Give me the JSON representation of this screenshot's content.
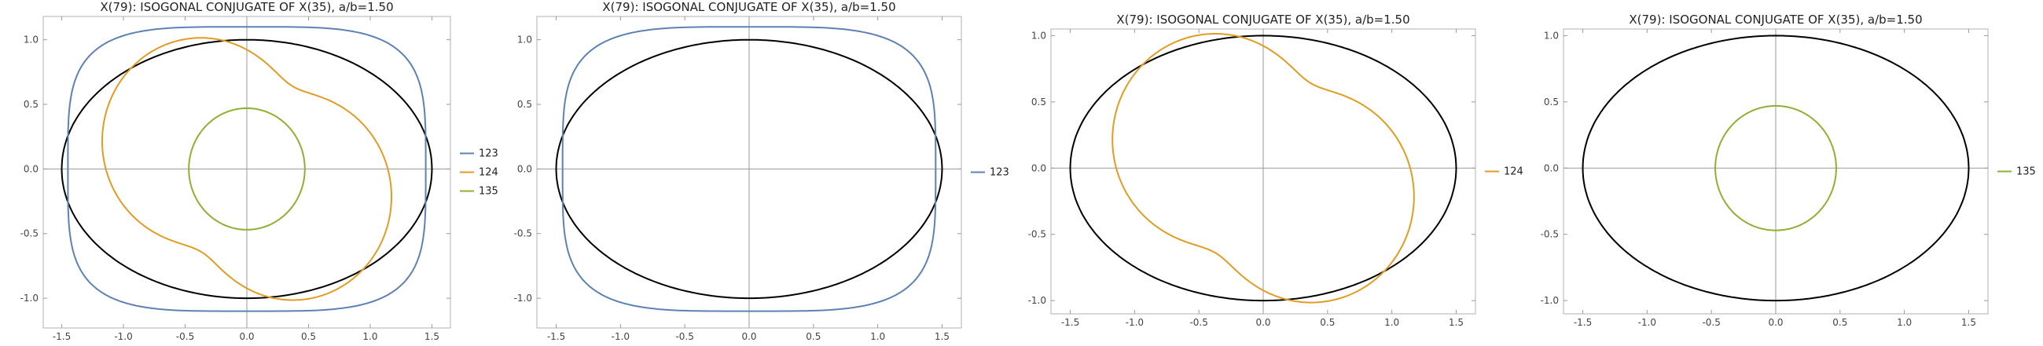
{
  "colors": {
    "s123": "#5e81b5",
    "s124": "#e19c24",
    "s135": "#8fb032",
    "ellipse": "#000000",
    "frame": "#b0b0b0",
    "axis": "#9a9a9a"
  },
  "chart_data": [
    {
      "type": "line",
      "title": "X(79): ISOGONAL CONJUGATE OF X(35), a/b=1.50",
      "xlabel": "",
      "ylabel": "",
      "xlim": [
        -1.65,
        1.65
      ],
      "ylim": [
        -1.23,
        1.18
      ],
      "xticks": [
        "-1.5",
        "-1.0",
        "-0.5",
        "0.0",
        "0.5",
        "1.0",
        "1.5"
      ],
      "yticks": [
        "1.0",
        "0.5",
        "0.0",
        "-0.5",
        "-1.0"
      ],
      "grid": false,
      "legend": "right",
      "series": [
        {
          "name": "123",
          "color": "s123",
          "shape": "rounded-ellipse",
          "rx": 1.45,
          "ry": 1.1
        },
        {
          "name": "124",
          "color": "s124",
          "shape": "loop-curve"
        },
        {
          "name": "135",
          "color": "s135",
          "shape": "circle",
          "r": 0.47
        }
      ]
    },
    {
      "type": "line",
      "title": "X(79): ISOGONAL CONJUGATE OF X(35), a/b=1.50",
      "xlabel": "",
      "ylabel": "",
      "xlim": [
        -1.65,
        1.65
      ],
      "ylim": [
        -1.23,
        1.18
      ],
      "xticks": [
        "-1.5",
        "-1.0",
        "-0.5",
        "0.0",
        "0.5",
        "1.0",
        "1.5"
      ],
      "yticks": [
        "1.0",
        "0.5",
        "0.0",
        "-0.5",
        "-1.0"
      ],
      "grid": false,
      "legend": "right",
      "series": [
        {
          "name": "123",
          "color": "s123",
          "shape": "rounded-ellipse",
          "rx": 1.45,
          "ry": 1.1
        }
      ]
    },
    {
      "type": "line",
      "title": "X(79): ISOGONAL CONJUGATE OF X(35), a/b=1.50",
      "xlabel": "",
      "ylabel": "",
      "xlim": [
        -1.65,
        1.65
      ],
      "ylim": [
        -1.1,
        1.05
      ],
      "xticks": [
        "-1.5",
        "-1.0",
        "-0.5",
        "0.0",
        "0.5",
        "1.0",
        "1.5"
      ],
      "yticks": [
        "1.0",
        "0.5",
        "0.0",
        "-0.5",
        "-1.0"
      ],
      "grid": false,
      "legend": "right",
      "series": [
        {
          "name": "124",
          "color": "s124",
          "shape": "loop-curve"
        }
      ]
    },
    {
      "type": "line",
      "title": "X(79): ISOGONAL CONJUGATE OF X(35), a/b=1.50",
      "xlabel": "",
      "ylabel": "",
      "xlim": [
        -1.65,
        1.65
      ],
      "ylim": [
        -1.1,
        1.05
      ],
      "xticks": [
        "-1.5",
        "-1.0",
        "-0.5",
        "0.0",
        "0.5",
        "1.0",
        "1.5"
      ],
      "yticks": [
        "1.0",
        "0.5",
        "0.0",
        "-0.5",
        "-1.0"
      ],
      "grid": false,
      "legend": "right",
      "series": [
        {
          "name": "135",
          "color": "s135",
          "shape": "circle",
          "r": 0.47
        }
      ]
    }
  ]
}
